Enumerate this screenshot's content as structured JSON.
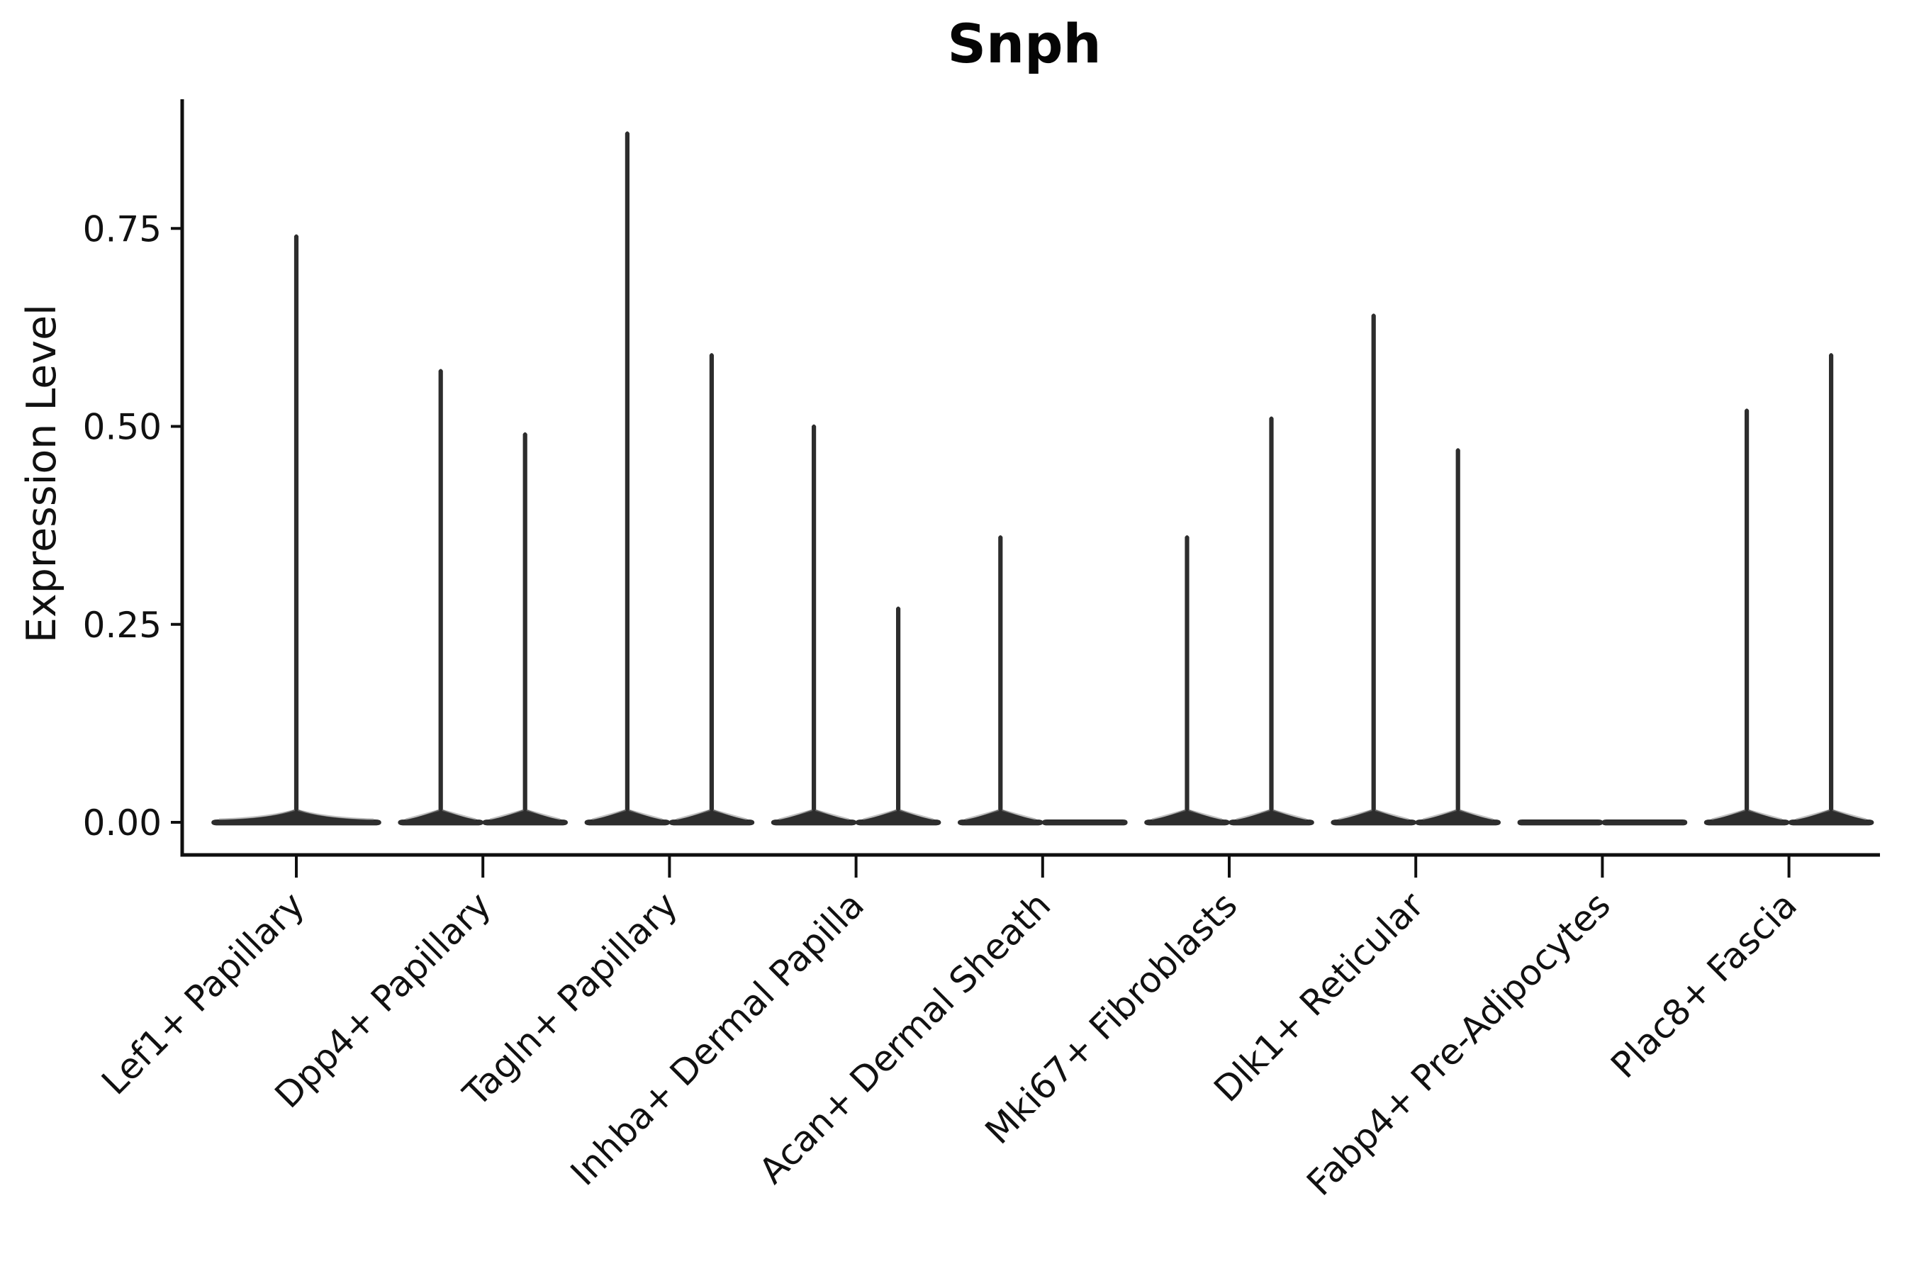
{
  "title": "Snph",
  "y_axis": {
    "label": "Expression Level",
    "ticks": [
      {
        "label": "0.00",
        "value": 0.0
      },
      {
        "label": "0.25",
        "value": 0.25
      },
      {
        "label": "0.50",
        "value": 0.5
      },
      {
        "label": "0.75",
        "value": 0.75
      }
    ]
  },
  "colors": {
    "violin_fill": "#2d2d2d",
    "axis_color": "#0f0f0f",
    "text_color": "#111111",
    "background": "#ffffff"
  },
  "chart_data": {
    "type": "violin",
    "title": "Snph",
    "xlabel": "",
    "ylabel": "Expression Level",
    "ylim": [
      0,
      0.91
    ],
    "yticks": [
      0.0,
      0.25,
      0.5,
      0.75
    ],
    "grid": false,
    "legend": "none",
    "note": "Needle violins: nearly all density at 0 (flat base), thin spike to max expression. Categories with two violins are split side-by-side; max=0 means flat violin with no spike.",
    "categories": [
      {
        "label": "Lef1+ Papillary",
        "violins": [
          {
            "pos": "center",
            "max": 0.74
          }
        ]
      },
      {
        "label": "Dpp4+ Papillary",
        "violins": [
          {
            "pos": "left",
            "max": 0.57
          },
          {
            "pos": "right",
            "max": 0.49
          }
        ]
      },
      {
        "label": "Tagln+ Papillary",
        "violins": [
          {
            "pos": "left",
            "max": 0.87
          },
          {
            "pos": "right",
            "max": 0.59
          }
        ]
      },
      {
        "label": "Inhba+ Dermal Papilla",
        "violins": [
          {
            "pos": "left",
            "max": 0.5
          },
          {
            "pos": "right",
            "max": 0.27
          }
        ]
      },
      {
        "label": "Acan+ Dermal Sheath",
        "violins": [
          {
            "pos": "left",
            "max": 0.36
          },
          {
            "pos": "right",
            "max": 0.0
          }
        ]
      },
      {
        "label": "Mki67+ Fibroblasts",
        "violins": [
          {
            "pos": "left",
            "max": 0.36
          },
          {
            "pos": "right",
            "max": 0.51
          }
        ]
      },
      {
        "label": "Dlk1+ Reticular",
        "violins": [
          {
            "pos": "left",
            "max": 0.64
          },
          {
            "pos": "right",
            "max": 0.47
          }
        ]
      },
      {
        "label": "Fabp4+ Pre-Adipocytes",
        "violins": [
          {
            "pos": "left",
            "max": 0.0
          },
          {
            "pos": "right",
            "max": 0.0
          }
        ]
      },
      {
        "label": "Plac8+ Fascia",
        "violins": [
          {
            "pos": "left",
            "max": 0.52
          },
          {
            "pos": "right",
            "max": 0.59
          }
        ]
      }
    ]
  }
}
